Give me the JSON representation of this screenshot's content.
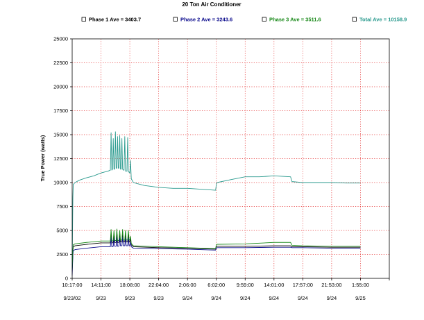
{
  "chart_data": {
    "type": "line",
    "title": "20 Ton Air Conditioner",
    "ylabel": "True Power (watts)",
    "xlabel": "",
    "ylim": [
      0,
      25000
    ],
    "yticks": [
      0,
      2500,
      5000,
      7500,
      10000,
      12500,
      15000,
      17500,
      20000,
      22500,
      25000
    ],
    "ytick_labels": [
      "0",
      "2500",
      "5000",
      "7500",
      "10000",
      "12500",
      "15000",
      "17500",
      "20000",
      "22500",
      "25000"
    ],
    "xlim": [
      0,
      44
    ],
    "xticks": [
      0,
      4,
      8,
      12,
      16,
      20,
      24,
      28,
      32,
      36,
      40,
      44
    ],
    "xtick_times": [
      "10:17:00",
      "14:11:00",
      "18:08:00",
      "22:04:00",
      "2:06:00",
      "6:02:00",
      "9:59:00",
      "14:01:00",
      "17:57:00",
      "21:53:00",
      "1:55:00"
    ],
    "xtick_time_positions": [
      0,
      4,
      8,
      12,
      16,
      20,
      24,
      28,
      32,
      36,
      40
    ],
    "xtick_dates": [
      "9/23/02",
      "9/23",
      "9/23",
      "9/23",
      "9/24",
      "9/24",
      "9/24",
      "9/24",
      "9/24",
      "9/24",
      "9/25"
    ],
    "grid": true,
    "legend_position": "top",
    "series": [
      {
        "name": "Phase 1 Ave = 3403.7",
        "color": "#000000",
        "x": [
          0,
          0.1,
          0.15,
          0.4,
          2,
          4,
          5.3,
          5.4,
          5.5,
          5.6,
          5.7,
          5.8,
          5.9,
          6.0,
          6.1,
          6.2,
          6.3,
          6.4,
          6.5,
          6.6,
          6.7,
          6.8,
          6.9,
          7.0,
          7.1,
          7.2,
          7.3,
          7.4,
          7.5,
          7.6,
          7.7,
          7.8,
          7.9,
          8.0,
          8.1,
          8.2,
          8.5,
          12,
          16,
          19.9,
          20,
          20.1,
          24,
          28,
          30.3,
          30.5,
          32,
          36,
          40
        ],
        "y": [
          700,
          2800,
          3300,
          3400,
          3550,
          3700,
          3700,
          4800,
          3700,
          3700,
          3750,
          4700,
          3750,
          3750,
          3750,
          4850,
          3750,
          3750,
          3800,
          4700,
          3800,
          3800,
          3800,
          4800,
          3800,
          3800,
          3800,
          4700,
          3800,
          3800,
          3800,
          4700,
          3800,
          3800,
          4200,
          3500,
          3300,
          3200,
          3150,
          3050,
          3300,
          3350,
          3350,
          3400,
          3400,
          3300,
          3300,
          3250,
          3250
        ]
      },
      {
        "name": "Phase 2 Ave = 3243.6",
        "color": "#0a0a8c",
        "x": [
          0,
          0.1,
          0.15,
          0.4,
          2,
          4,
          5.3,
          5.4,
          5.5,
          5.6,
          5.7,
          5.8,
          5.9,
          6.0,
          6.1,
          6.2,
          6.3,
          6.4,
          6.5,
          6.6,
          6.7,
          6.8,
          6.9,
          7.0,
          7.1,
          7.2,
          7.3,
          7.4,
          7.5,
          7.6,
          7.7,
          7.8,
          7.9,
          8.0,
          8.1,
          8.2,
          8.5,
          12,
          16,
          19.9,
          20,
          20.1,
          24,
          28,
          30.3,
          30.5,
          32,
          36,
          40
        ],
        "y": [
          300,
          2400,
          2900,
          3000,
          3150,
          3300,
          3300,
          4300,
          3300,
          3300,
          3350,
          4200,
          3350,
          3350,
          3350,
          4350,
          3350,
          3350,
          3400,
          4200,
          3400,
          3400,
          3400,
          4300,
          3400,
          3400,
          3400,
          4200,
          3400,
          3400,
          3400,
          4200,
          3400,
          3400,
          3800,
          3300,
          3150,
          3100,
          3050,
          2950,
          3150,
          3200,
          3200,
          3250,
          3250,
          3200,
          3200,
          3150,
          3150
        ]
      },
      {
        "name": "Phase 3 Ave = 3511.6",
        "color": "#1a8a1a",
        "x": [
          0,
          0.1,
          0.15,
          0.4,
          2,
          4,
          5.3,
          5.4,
          5.5,
          5.6,
          5.7,
          5.8,
          5.9,
          6.0,
          6.1,
          6.2,
          6.3,
          6.4,
          6.5,
          6.6,
          6.7,
          6.8,
          6.9,
          7.0,
          7.1,
          7.2,
          7.3,
          7.4,
          7.5,
          7.6,
          7.7,
          7.8,
          7.9,
          8.0,
          8.1,
          8.2,
          8.5,
          12,
          16,
          19.9,
          20,
          20.1,
          24,
          28,
          30.3,
          30.5,
          32,
          36,
          40
        ],
        "y": [
          900,
          3000,
          3500,
          3600,
          3750,
          3900,
          3900,
          5100,
          3900,
          3900,
          3950,
          5000,
          3950,
          3950,
          3950,
          5150,
          3950,
          3950,
          4000,
          5000,
          4000,
          4000,
          4000,
          5100,
          4000,
          4000,
          4000,
          5000,
          4000,
          4000,
          4000,
          5000,
          4000,
          4000,
          4400,
          3650,
          3400,
          3300,
          3200,
          3100,
          3500,
          3550,
          3600,
          3750,
          3750,
          3450,
          3400,
          3350,
          3350
        ]
      },
      {
        "name": "Total Ave = 10158.9",
        "color": "#2a9a8e",
        "x": [
          0,
          0.1,
          0.15,
          0.4,
          1,
          2,
          3,
          4,
          5,
          5.3,
          5.4,
          5.5,
          5.6,
          5.7,
          5.8,
          5.9,
          6.0,
          6.1,
          6.2,
          6.3,
          6.4,
          6.5,
          6.6,
          6.7,
          6.8,
          6.9,
          7.0,
          7.1,
          7.2,
          7.3,
          7.4,
          7.5,
          7.6,
          7.7,
          7.8,
          7.9,
          8.0,
          8.1,
          8.2,
          8.5,
          9,
          10,
          12,
          14,
          16,
          18,
          19.9,
          20,
          20.1,
          22,
          24,
          26,
          28,
          30.3,
          30.5,
          32,
          34,
          36,
          38,
          40
        ],
        "y": [
          1500,
          8500,
          9800,
          10000,
          10250,
          10500,
          10700,
          11000,
          11200,
          11300,
          15200,
          11300,
          11400,
          14600,
          11400,
          11400,
          15300,
          11500,
          11500,
          14800,
          11500,
          11500,
          14900,
          11400,
          11400,
          14600,
          11400,
          11300,
          11300,
          14800,
          11200,
          11200,
          11200,
          14700,
          11100,
          11100,
          11000,
          12300,
          10400,
          10000,
          9900,
          9700,
          9500,
          9400,
          9400,
          9300,
          9200,
          9800,
          10000,
          10300,
          10600,
          10600,
          10700,
          10600,
          10100,
          10000,
          10000,
          10000,
          9950,
          9950
        ]
      }
    ]
  }
}
